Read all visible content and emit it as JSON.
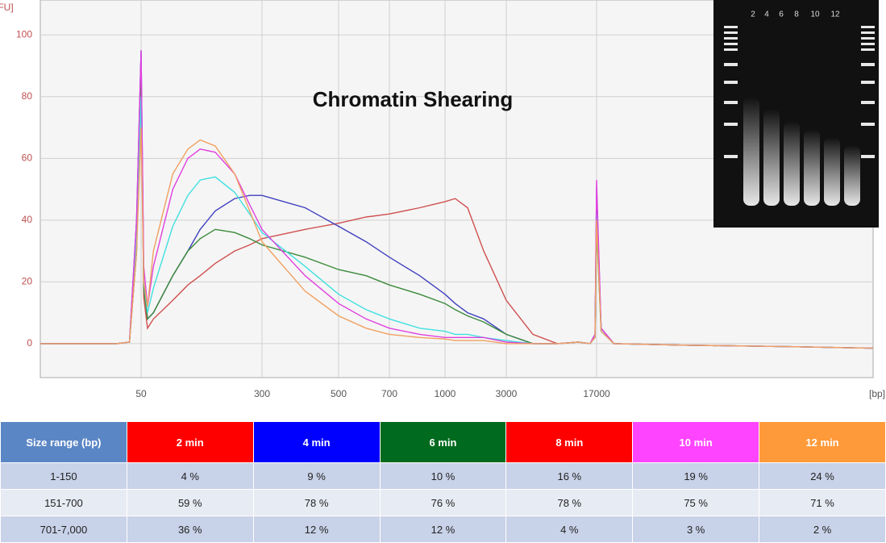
{
  "chart_data": {
    "type": "line",
    "title": "Chromatin Shearing",
    "y_label": "[FU]",
    "x_label": "[bp]",
    "x": [
      20,
      30,
      40,
      45,
      48,
      50,
      52,
      55,
      60,
      80,
      100,
      120,
      150,
      200,
      250,
      300,
      400,
      500,
      600,
      700,
      850,
      1000,
      1200,
      1500,
      2000,
      3000,
      5000,
      8000,
      12000,
      15000,
      16500,
      17000,
      17500,
      19000,
      30000,
      60000,
      100000
    ],
    "series": [
      {
        "color": "#d05050",
        "values": [
          0,
          0,
          0,
          0.5,
          30,
          90,
          15,
          5,
          8,
          14,
          19,
          22,
          26,
          30,
          32,
          34,
          37,
          39,
          41,
          42,
          44,
          46,
          47,
          44,
          30,
          14,
          3,
          0,
          0.5,
          0,
          3,
          45,
          5,
          0,
          -0.5,
          -1,
          -1.5
        ]
      },
      {
        "color": "#4040c0",
        "values": [
          0,
          0,
          0,
          0.5,
          40,
          95,
          20,
          8,
          10,
          22,
          30,
          37,
          43,
          47,
          48,
          48,
          44,
          38,
          33,
          28,
          22,
          16,
          13,
          10,
          8,
          3,
          0,
          0,
          0.5,
          0,
          3,
          50,
          5,
          0,
          -0.5,
          -1,
          -1.5
        ]
      },
      {
        "color": "#3a8a3a",
        "values": [
          0,
          0,
          0,
          0.5,
          30,
          85,
          18,
          8,
          10,
          22,
          30,
          34,
          37,
          36,
          34,
          32,
          28,
          24,
          22,
          19,
          16,
          13,
          11,
          9,
          7,
          3,
          0,
          0,
          0.5,
          0,
          2,
          38,
          4,
          0,
          -0.5,
          -1,
          -1.5
        ]
      },
      {
        "color": "#40e0e0",
        "values": [
          0,
          0,
          0,
          0.5,
          35,
          80,
          20,
          10,
          18,
          38,
          48,
          53,
          54,
          49,
          42,
          36,
          25,
          16,
          11,
          8,
          5,
          4,
          3,
          3,
          2,
          1,
          0,
          0,
          0.5,
          0,
          2,
          42,
          4,
          0,
          -0.5,
          -1,
          -1.5
        ]
      },
      {
        "color": "#e040e0",
        "values": [
          0,
          0,
          0,
          0.5,
          40,
          95,
          25,
          12,
          25,
          50,
          60,
          63,
          62,
          55,
          45,
          37,
          22,
          13,
          8,
          5,
          3,
          2,
          2,
          2,
          2,
          0.5,
          0,
          0,
          0.5,
          0,
          3,
          53,
          5,
          0,
          -0.5,
          -1,
          -1.5
        ]
      },
      {
        "color": "#f0a060",
        "values": [
          0,
          0,
          0,
          0.5,
          30,
          70,
          20,
          12,
          30,
          55,
          63,
          66,
          64,
          55,
          43,
          33,
          17,
          9,
          5,
          3,
          2,
          1.5,
          1,
          1,
          1,
          0,
          0,
          0,
          0.5,
          0,
          2,
          40,
          4,
          0,
          -0.5,
          -1,
          -1.5
        ]
      }
    ],
    "xlim": [
      20,
      100000
    ],
    "xticks": [
      50,
      300,
      500,
      700,
      1000,
      3000,
      17000
    ],
    "ylim": [
      -11,
      110
    ],
    "yticks": [
      0,
      20,
      40,
      60,
      80,
      100
    ],
    "grid": true
  },
  "gel": {
    "lane_labels": [
      "2",
      "4",
      "6",
      "8",
      "10",
      "12"
    ]
  },
  "table": {
    "header": [
      "Size range (bp)",
      "2 min",
      "4 min",
      "6 min",
      "8 min",
      "10 min",
      "12 min"
    ],
    "rows": [
      [
        "1-150",
        "4 %",
        "9 %",
        "10 %",
        "16 %",
        "19 %",
        "24 %"
      ],
      [
        "151-700",
        "59 %",
        "78 %",
        "76 %",
        "78 %",
        "75 %",
        "71 %"
      ],
      [
        "701-7,000",
        "36 %",
        "12 %",
        "12 %",
        "4 %",
        "3 %",
        "2 %"
      ]
    ]
  }
}
